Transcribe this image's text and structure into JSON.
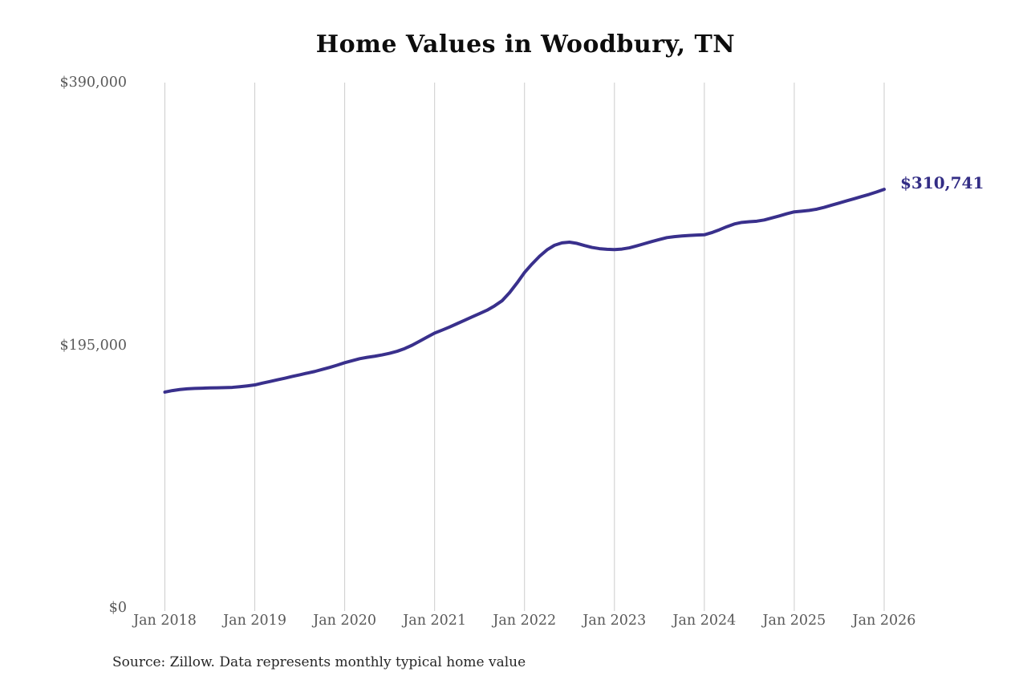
{
  "source_note": "Source: Zillow. Data represents monthly typical home value",
  "colors": {
    "line": "#39308c",
    "end_label": "#332d85",
    "grid": "#cccccc",
    "tick_text": "#595959",
    "title_text": "#0d0d0d",
    "source_text": "#262626",
    "background": "#ffffff"
  },
  "chart_data": {
    "type": "line",
    "title": "Home Values in Woodbury, TN",
    "end_label": "$310,741",
    "final_value": 310741,
    "x_start": "Jan 2018",
    "x_interval": "monthly",
    "x_tick_labels": [
      "Jan 2018",
      "Jan 2019",
      "Jan 2020",
      "Jan 2021",
      "Jan 2022",
      "Jan 2023",
      "Jan 2024",
      "Jan 2025",
      "Jan 2026"
    ],
    "y_ticks": [
      {
        "value": 0,
        "label": "$0"
      },
      {
        "value": 195000,
        "label": "$195,000"
      },
      {
        "value": 390000,
        "label": "$390,000"
      }
    ],
    "ylim": [
      0,
      390000
    ],
    "grid": "vertical-only",
    "legend": "none",
    "values": [
      160200,
      161300,
      162100,
      162600,
      162900,
      163100,
      163300,
      163400,
      163500,
      163700,
      164200,
      164800,
      165500,
      166800,
      168000,
      169300,
      170500,
      171800,
      173000,
      174300,
      175500,
      177000,
      178500,
      180200,
      182000,
      183500,
      185000,
      186000,
      186800,
      187800,
      189000,
      190500,
      192500,
      195000,
      198000,
      201000,
      204000,
      206200,
      208500,
      211000,
      213500,
      216000,
      218500,
      221000,
      224200,
      228000,
      234000,
      241200,
      249000,
      255300,
      261000,
      265800,
      269200,
      271000,
      271500,
      270600,
      269000,
      267600,
      266700,
      266200,
      266000,
      266400,
      267300,
      268800,
      270400,
      272000,
      273500,
      274900,
      275600,
      276100,
      276500,
      276800,
      277000,
      278600,
      280700,
      283000,
      285000,
      286200,
      286700,
      287100,
      288000,
      289500,
      291000,
      292600,
      294000,
      294500,
      295100,
      296000,
      297400,
      299000,
      300600,
      302200,
      303800,
      305400,
      307000,
      308800,
      310741
    ]
  }
}
